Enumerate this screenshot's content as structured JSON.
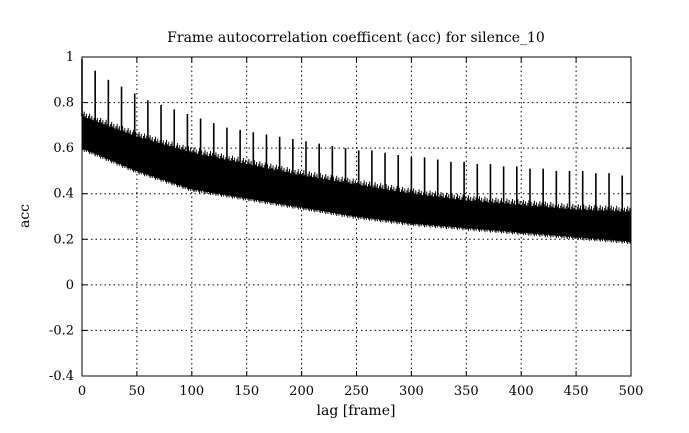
{
  "chart_data": {
    "type": "line",
    "title": "Frame autocorrelation coefficent (acc) for silence_10",
    "xlabel": "lag [frame]",
    "ylabel": "acc",
    "xlim": [
      0,
      500
    ],
    "ylim": [
      -0.4,
      1
    ],
    "x_ticks": [
      0,
      50,
      100,
      150,
      200,
      250,
      300,
      350,
      400,
      450,
      500
    ],
    "y_ticks": [
      -0.4,
      -0.2,
      0,
      0.2,
      0.4,
      0.6,
      0.8,
      1
    ],
    "x_tick_labels": [
      "0",
      "50",
      "100",
      "150",
      "200",
      "250",
      "300",
      "350",
      "400",
      "450",
      "500"
    ],
    "y_tick_labels": [
      "-0.4",
      "-0.2",
      "0",
      "0.2",
      "0.4",
      "0.6",
      "0.8",
      "1"
    ],
    "grid": true,
    "series_color": "#000000",
    "band": {
      "x": [
        0,
        50,
        100,
        150,
        200,
        250,
        300,
        350,
        400,
        450,
        500
      ],
      "upper": [
        0.74,
        0.65,
        0.58,
        0.53,
        0.48,
        0.44,
        0.4,
        0.37,
        0.35,
        0.33,
        0.32
      ],
      "lower": [
        0.6,
        0.5,
        0.42,
        0.38,
        0.34,
        0.3,
        0.27,
        0.25,
        0.23,
        0.21,
        0.19
      ]
    },
    "peaks": {
      "x": [
        0,
        12,
        24,
        36,
        48,
        60,
        72,
        84,
        96,
        108,
        120,
        132,
        144,
        156,
        168,
        180,
        192,
        204,
        216,
        228,
        240,
        252,
        264,
        276,
        288,
        300,
        312,
        324,
        336,
        348,
        360,
        372,
        384,
        396,
        408,
        420,
        432,
        444,
        456,
        468,
        480,
        492
      ],
      "y": [
        0.99,
        0.94,
        0.9,
        0.87,
        0.84,
        0.81,
        0.79,
        0.77,
        0.75,
        0.73,
        0.71,
        0.69,
        0.68,
        0.67,
        0.66,
        0.65,
        0.64,
        0.63,
        0.62,
        0.61,
        0.6,
        0.59,
        0.59,
        0.58,
        0.57,
        0.56,
        0.56,
        0.55,
        0.54,
        0.54,
        0.53,
        0.53,
        0.52,
        0.52,
        0.51,
        0.51,
        0.5,
        0.5,
        0.5,
        0.49,
        0.49,
        0.48
      ]
    }
  }
}
